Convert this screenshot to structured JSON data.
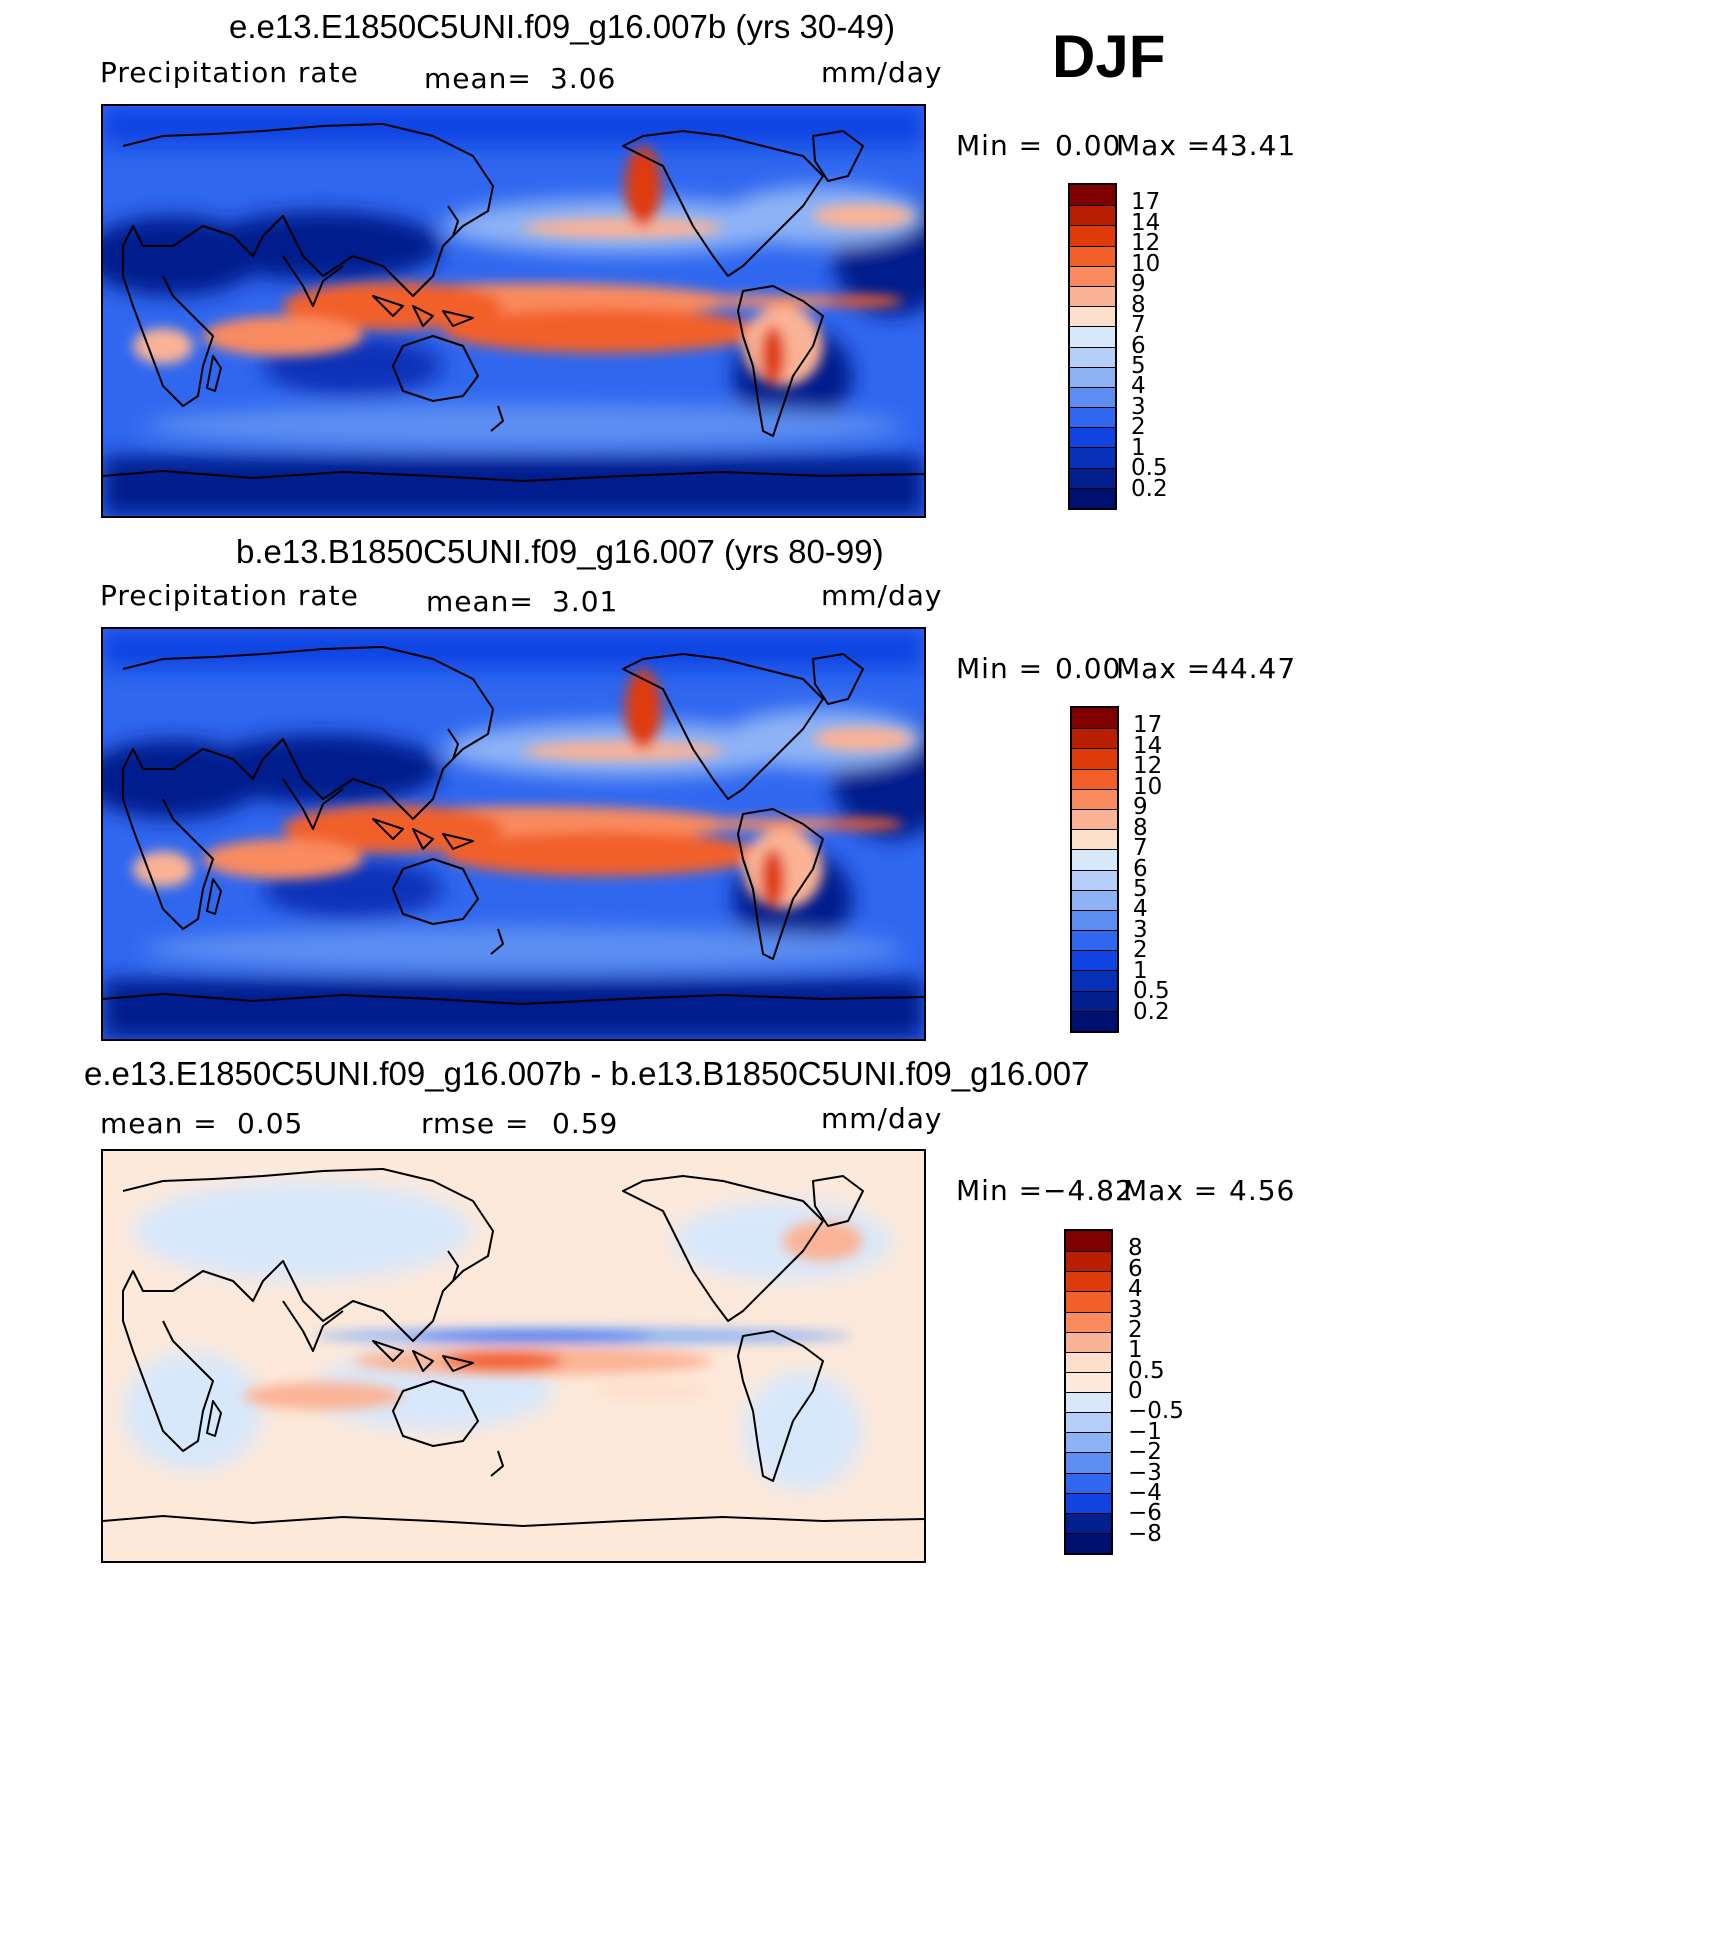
{
  "season": "DJF",
  "panels": [
    {
      "title": "e.e13.E1850C5UNI.f09_g16.007b (yrs 30-49)",
      "variable": "Precipitation  rate",
      "mean_label": "mean=",
      "mean_value": "3.06",
      "units": "mm/day",
      "min_label": "Min  =",
      "min_value": "0.00",
      "max_label": "Max  =",
      "max_value": "43.41",
      "scale": "abs",
      "colorbar_labels": [
        "17",
        "14",
        "12",
        "10",
        "9",
        "8",
        "7",
        "6",
        "5",
        "4",
        "3",
        "2",
        "1",
        "0.5",
        "0.2"
      ]
    },
    {
      "title": "b.e13.B1850C5UNI.f09_g16.007 (yrs 80-99)",
      "variable": "Precipitation  rate",
      "mean_label": "mean=",
      "mean_value": "3.01",
      "units": "mm/day",
      "min_label": "Min  =",
      "min_value": "0.00",
      "max_label": "Max  =",
      "max_value": "44.47",
      "scale": "abs",
      "colorbar_labels": [
        "17",
        "14",
        "12",
        "10",
        "9",
        "8",
        "7",
        "6",
        "5",
        "4",
        "3",
        "2",
        "1",
        "0.5",
        "0.2"
      ]
    },
    {
      "title": "e.e13.E1850C5UNI.f09_g16.007b - b.e13.B1850C5UNI.f09_g16.007",
      "mean_label": "mean  =",
      "mean_value": "0.05",
      "rmse_label": "rmse  =",
      "rmse_value": "0.59",
      "units": "mm/day",
      "min_label": "Min  =",
      "min_value": "−4.82",
      "max_label": "Max  =",
      "max_value": "4.56",
      "scale": "diff",
      "colorbar_labels": [
        "8",
        "6",
        "4",
        "3",
        "2",
        "1",
        "0.5",
        "0",
        "−0.5",
        "−1",
        "−2",
        "−3",
        "−4",
        "−6",
        "−8"
      ]
    }
  ],
  "colors": {
    "abs_scale": [
      "#7f0000",
      "#b81f00",
      "#df3a0a",
      "#f2602a",
      "#f98b5e",
      "#fbb395",
      "#fde0cc",
      "#d8e8fb",
      "#b5cff8",
      "#8eb3f5",
      "#5d8ff2",
      "#2f67ef",
      "#0f44e3",
      "#0730b8",
      "#031f8d",
      "#001070"
    ],
    "diff_scale": [
      "#7f0000",
      "#b81f00",
      "#df3a0a",
      "#f2602a",
      "#f98b5e",
      "#fbb395",
      "#fde0cc",
      "#fde9da",
      "#d8e8fb",
      "#b5cff8",
      "#8eb3f5",
      "#5d8ff2",
      "#2f67ef",
      "#0f44e3",
      "#031f8d",
      "#001070"
    ]
  }
}
